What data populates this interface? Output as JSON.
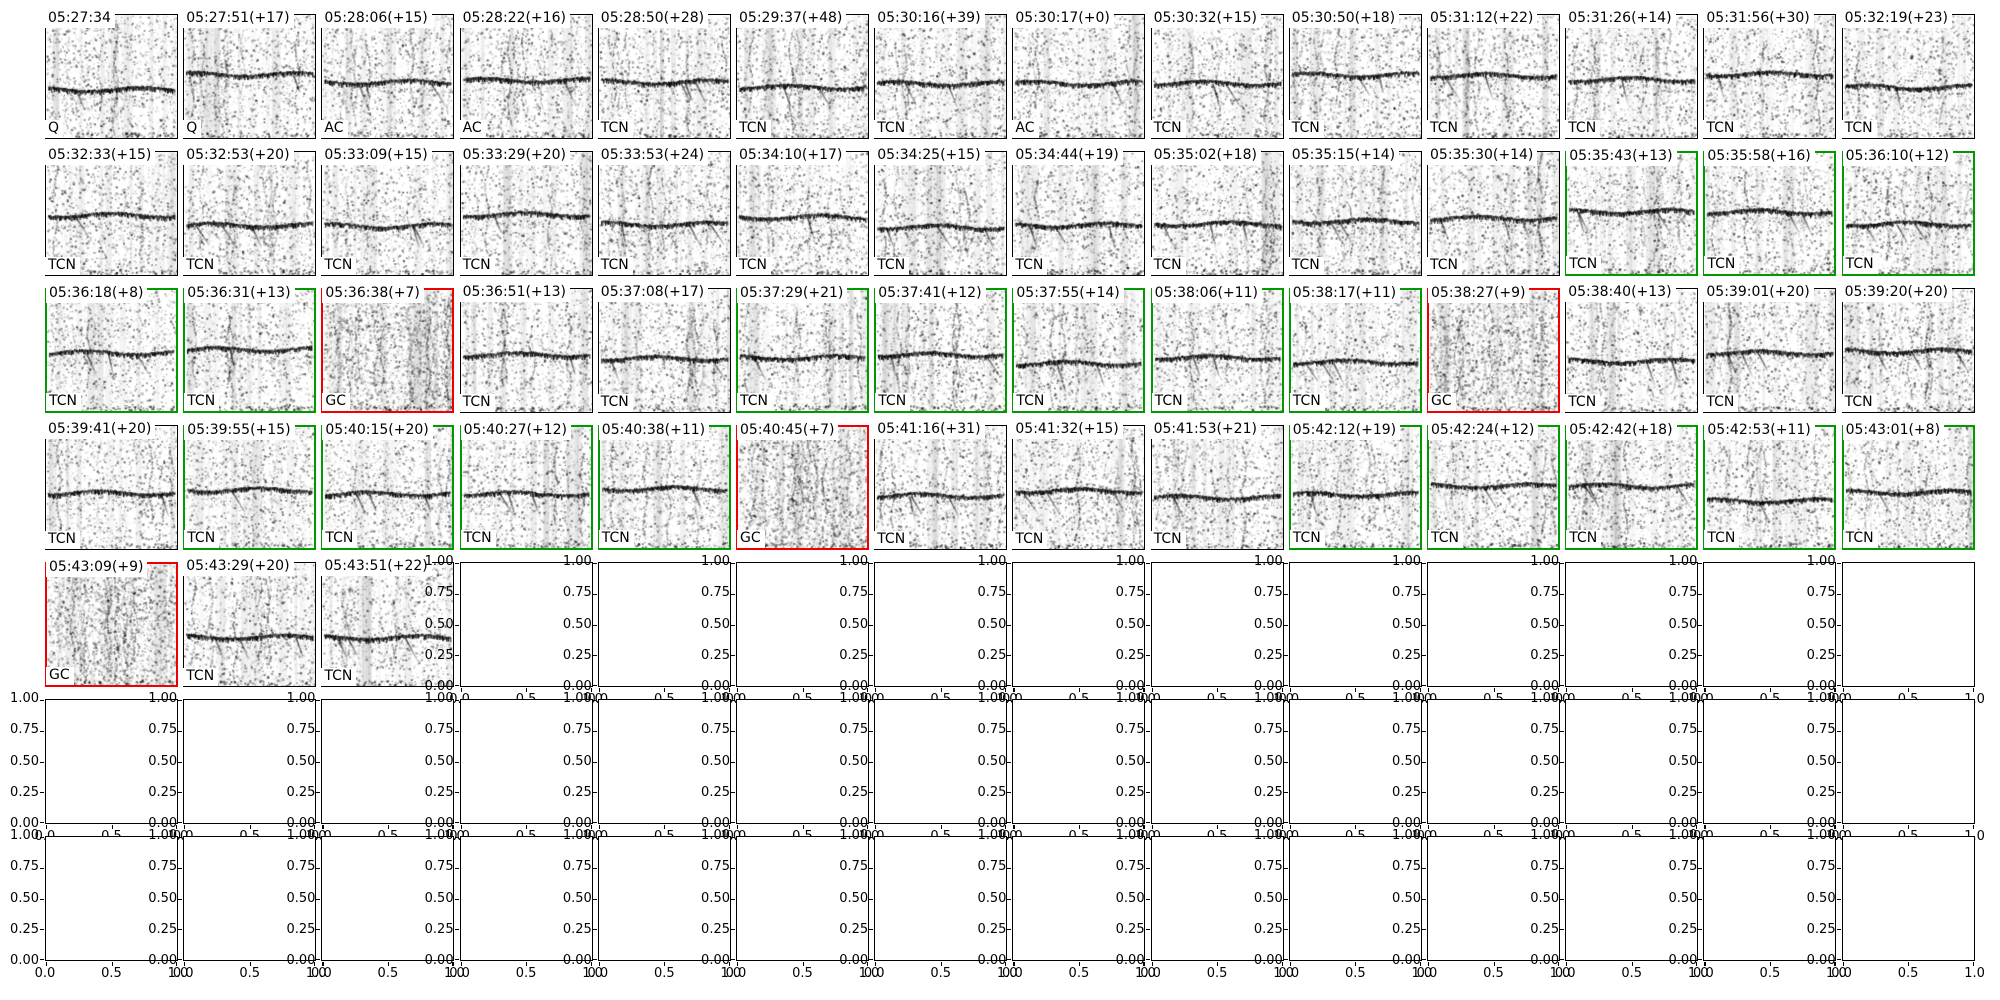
{
  "figure": {
    "type": "spectrogram-review-grid",
    "rows": 7,
    "cols": 14,
    "border_colors": {
      "black": "#000000",
      "green": "#009900",
      "red": "#ee0000"
    },
    "y_ticks": [
      "1.00",
      "0.75",
      "0.50",
      "0.25",
      "0.00"
    ],
    "x_ticks": [
      "0.0",
      "0.5",
      "1.0"
    ],
    "grid": [
      [
        {
          "time": "05:27:34",
          "label": "Q",
          "border": "black"
        },
        {
          "time": "05:27:51(+17)",
          "label": "Q",
          "border": "black"
        },
        {
          "time": "05:28:06(+15)",
          "label": "AC",
          "border": "black"
        },
        {
          "time": "05:28:22(+16)",
          "label": "AC",
          "border": "black"
        },
        {
          "time": "05:28:50(+28)",
          "label": "TCN",
          "border": "black"
        },
        {
          "time": "05:29:37(+48)",
          "label": "TCN",
          "border": "black"
        },
        {
          "time": "05:30:16(+39)",
          "label": "TCN",
          "border": "black"
        },
        {
          "time": "05:30:17(+0)",
          "label": "AC",
          "border": "black"
        },
        {
          "time": "05:30:32(+15)",
          "label": "TCN",
          "border": "black"
        },
        {
          "time": "05:30:50(+18)",
          "label": "TCN",
          "border": "black"
        },
        {
          "time": "05:31:12(+22)",
          "label": "TCN",
          "border": "black"
        },
        {
          "time": "05:31:26(+14)",
          "label": "TCN",
          "border": "black"
        },
        {
          "time": "05:31:56(+30)",
          "label": "TCN",
          "border": "black"
        },
        {
          "time": "05:32:19(+23)",
          "label": "TCN",
          "border": "black"
        }
      ],
      [
        {
          "time": "05:32:33(+15)",
          "label": "TCN",
          "border": "black"
        },
        {
          "time": "05:32:53(+20)",
          "label": "TCN",
          "border": "black"
        },
        {
          "time": "05:33:09(+15)",
          "label": "TCN",
          "border": "black"
        },
        {
          "time": "05:33:29(+20)",
          "label": "TCN",
          "border": "black"
        },
        {
          "time": "05:33:53(+24)",
          "label": "TCN",
          "border": "black"
        },
        {
          "time": "05:34:10(+17)",
          "label": "TCN",
          "border": "black"
        },
        {
          "time": "05:34:25(+15)",
          "label": "TCN",
          "border": "black"
        },
        {
          "time": "05:34:44(+19)",
          "label": "TCN",
          "border": "black"
        },
        {
          "time": "05:35:02(+18)",
          "label": "TCN",
          "border": "black"
        },
        {
          "time": "05:35:15(+14)",
          "label": "TCN",
          "border": "black"
        },
        {
          "time": "05:35:30(+14)",
          "label": "TCN",
          "border": "black"
        },
        {
          "time": "05:35:43(+13)",
          "label": "TCN",
          "border": "green"
        },
        {
          "time": "05:35:58(+16)",
          "label": "TCN",
          "border": "green"
        },
        {
          "time": "05:36:10(+12)",
          "label": "TCN",
          "border": "green"
        }
      ],
      [
        {
          "time": "05:36:18(+8)",
          "label": "TCN",
          "border": "green"
        },
        {
          "time": "05:36:31(+13)",
          "label": "TCN",
          "border": "green"
        },
        {
          "time": "05:36:38(+7)",
          "label": "GC",
          "border": "red"
        },
        {
          "time": "05:36:51(+13)",
          "label": "TCN",
          "border": "black"
        },
        {
          "time": "05:37:08(+17)",
          "label": "TCN",
          "border": "black"
        },
        {
          "time": "05:37:29(+21)",
          "label": "TCN",
          "border": "green"
        },
        {
          "time": "05:37:41(+12)",
          "label": "TCN",
          "border": "green"
        },
        {
          "time": "05:37:55(+14)",
          "label": "TCN",
          "border": "green"
        },
        {
          "time": "05:38:06(+11)",
          "label": "TCN",
          "border": "green"
        },
        {
          "time": "05:38:17(+11)",
          "label": "TCN",
          "border": "green"
        },
        {
          "time": "05:38:27(+9)",
          "label": "GC",
          "border": "red"
        },
        {
          "time": "05:38:40(+13)",
          "label": "TCN",
          "border": "black"
        },
        {
          "time": "05:39:01(+20)",
          "label": "TCN",
          "border": "black"
        },
        {
          "time": "05:39:20(+20)",
          "label": "TCN",
          "border": "black"
        }
      ],
      [
        {
          "time": "05:39:41(+20)",
          "label": "TCN",
          "border": "black"
        },
        {
          "time": "05:39:55(+15)",
          "label": "TCN",
          "border": "green"
        },
        {
          "time": "05:40:15(+20)",
          "label": "TCN",
          "border": "green"
        },
        {
          "time": "05:40:27(+12)",
          "label": "TCN",
          "border": "green"
        },
        {
          "time": "05:40:38(+11)",
          "label": "TCN",
          "border": "green"
        },
        {
          "time": "05:40:45(+7)",
          "label": "GC",
          "border": "red"
        },
        {
          "time": "05:41:16(+31)",
          "label": "TCN",
          "border": "black"
        },
        {
          "time": "05:41:32(+15)",
          "label": "TCN",
          "border": "black"
        },
        {
          "time": "05:41:53(+21)",
          "label": "TCN",
          "border": "black"
        },
        {
          "time": "05:42:12(+19)",
          "label": "TCN",
          "border": "green"
        },
        {
          "time": "05:42:24(+12)",
          "label": "TCN",
          "border": "green"
        },
        {
          "time": "05:42:42(+18)",
          "label": "TCN",
          "border": "green"
        },
        {
          "time": "05:42:53(+11)",
          "label": "TCN",
          "border": "green"
        },
        {
          "time": "05:43:01(+8)",
          "label": "TCN",
          "border": "green"
        }
      ],
      [
        {
          "time": "05:43:09(+9)",
          "label": "GC",
          "border": "red"
        },
        {
          "time": "05:43:29(+20)",
          "label": "TCN",
          "border": "black"
        },
        {
          "time": "05:43:51(+22)",
          "label": "TCN",
          "border": "black"
        },
        null,
        null,
        null,
        null,
        null,
        null,
        null,
        null,
        null,
        null,
        null
      ],
      [
        null,
        null,
        null,
        null,
        null,
        null,
        null,
        null,
        null,
        null,
        null,
        null,
        null,
        null
      ],
      [
        null,
        null,
        null,
        null,
        null,
        null,
        null,
        null,
        null,
        null,
        null,
        null,
        null,
        null
      ]
    ]
  },
  "chart_data": {
    "type": "heatmap",
    "title": "",
    "description": "7x14 grid of spectrogram thumbnails; each filled cell shows a timestamp (top-left), a call-type label (bottom-left: Q, AC, TCN or GC) and a black, green or red frame; unused trailing cells are empty matplotlib axes",
    "filled_cells": 59,
    "cell_labels_legend": [
      "Q",
      "AC",
      "TCN",
      "GC"
    ],
    "empty_axes": {
      "xlim": [
        0.0,
        1.0
      ],
      "ylim": [
        0.0,
        1.0
      ],
      "x_tick_values": [
        0.0,
        0.5,
        1.0
      ],
      "y_tick_values": [
        0.0,
        0.25,
        0.5,
        0.75,
        1.0
      ],
      "grid": false,
      "legend": false
    }
  }
}
